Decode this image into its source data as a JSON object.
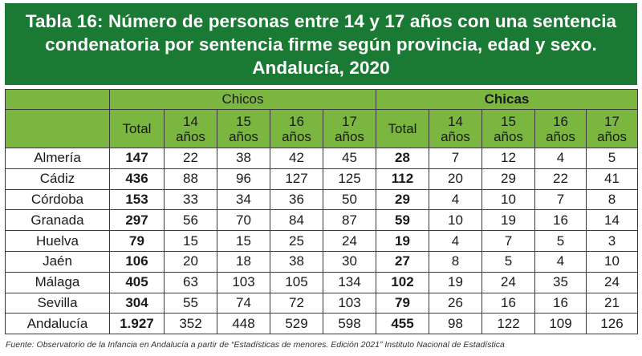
{
  "title": {
    "line1": "Tabla 16: Número de personas entre 14 y 17 años con una sentencia",
    "line2": "condenatoria por sentencia firme según provincia, edad y sexo.",
    "line3": "Andalucía, 2020"
  },
  "groups": {
    "chicos": "Chicos",
    "chicas": "Chicas"
  },
  "columns": [
    "Total",
    "14\naños",
    "15\naños",
    "16\naños",
    "17\naños"
  ],
  "rows": [
    {
      "prov": "Almería",
      "chicos": [
        "147",
        "22",
        "38",
        "42",
        "45"
      ],
      "chicas": [
        "28",
        "7",
        "12",
        "4",
        "5"
      ]
    },
    {
      "prov": "Cádiz",
      "chicos": [
        "436",
        "88",
        "96",
        "127",
        "125"
      ],
      "chicas": [
        "112",
        "20",
        "29",
        "22",
        "41"
      ]
    },
    {
      "prov": "Córdoba",
      "chicos": [
        "153",
        "33",
        "34",
        "36",
        "50"
      ],
      "chicas": [
        "29",
        "4",
        "10",
        "7",
        "8"
      ]
    },
    {
      "prov": "Granada",
      "chicos": [
        "297",
        "56",
        "70",
        "84",
        "87"
      ],
      "chicas": [
        "59",
        "10",
        "19",
        "16",
        "14"
      ]
    },
    {
      "prov": "Huelva",
      "chicos": [
        "79",
        "15",
        "15",
        "25",
        "24"
      ],
      "chicas": [
        "19",
        "4",
        "7",
        "5",
        "3"
      ]
    },
    {
      "prov": "Jaén",
      "chicos": [
        "106",
        "20",
        "18",
        "38",
        "30"
      ],
      "chicas": [
        "27",
        "8",
        "5",
        "4",
        "10"
      ]
    },
    {
      "prov": "Málaga",
      "chicos": [
        "405",
        "63",
        "103",
        "105",
        "134"
      ],
      "chicas": [
        "102",
        "19",
        "24",
        "35",
        "24"
      ]
    },
    {
      "prov": "Sevilla",
      "chicos": [
        "304",
        "55",
        "74",
        "72",
        "103"
      ],
      "chicas": [
        "79",
        "26",
        "16",
        "16",
        "21"
      ]
    },
    {
      "prov": "Andalucía",
      "chicos": [
        "1.927",
        "352",
        "448",
        "529",
        "598"
      ],
      "chicas": [
        "455",
        "98",
        "122",
        "109",
        "126"
      ]
    }
  ],
  "source": "Fuente: Observatorio de la Infancia en Andalucía a partir de “Estadísticas de menores. Edición 2021” Instituto Nacional de Estadística",
  "colors": {
    "header_bg": "#1a7a33",
    "table_head_bg": "#7bb640",
    "border": "#3a3a3a"
  }
}
